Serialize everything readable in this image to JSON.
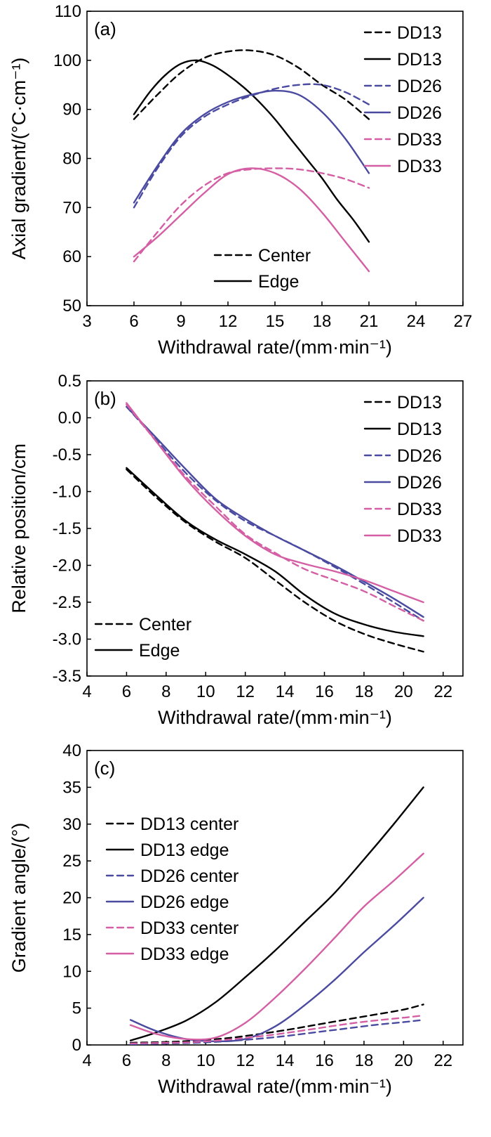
{
  "chart_data": [
    {
      "type": "line",
      "panel_label": "(a)",
      "xlabel": "Withdrawal rate/(mm·min⁻¹)",
      "ylabel": "Axial gradient/(°C·cm⁻¹)",
      "xlim": [
        3,
        27
      ],
      "ylim": [
        50,
        110
      ],
      "xticks": [
        3,
        6,
        9,
        12,
        15,
        18,
        21,
        24,
        27
      ],
      "yticks": [
        50,
        60,
        70,
        80,
        90,
        100,
        110
      ],
      "grid": false,
      "legend_placement": "top-right",
      "style_legend_placement": "bottom-center",
      "style_legend": [
        {
          "label": "Center",
          "dash": "dashed"
        },
        {
          "label": "Edge",
          "dash": "solid"
        }
      ],
      "series": [
        {
          "name": "DD13",
          "position": "center",
          "color": "#000000",
          "dash": "dashed",
          "x": [
            6,
            7.5,
            9,
            10.5,
            12,
            13.5,
            15,
            16.5,
            18,
            19.5,
            21
          ],
          "y": [
            88,
            93,
            97.5,
            100.5,
            101.8,
            102,
            101,
            98.5,
            95,
            92,
            88
          ]
        },
        {
          "name": "DD13",
          "position": "edge",
          "color": "#000000",
          "dash": "solid",
          "x": [
            6,
            7,
            8,
            9,
            10,
            11,
            12,
            13,
            14,
            15,
            16,
            17,
            18,
            19,
            20,
            21
          ],
          "y": [
            89,
            93.5,
            97,
            99.3,
            100,
            99,
            97,
            94.5,
            91.5,
            88,
            84,
            80,
            76,
            71.5,
            67.5,
            63
          ]
        },
        {
          "name": "DD26",
          "position": "center",
          "color": "#4a4aa0",
          "dash": "dashed",
          "x": [
            6,
            7.5,
            9,
            10.5,
            12,
            13.5,
            15,
            16.5,
            18,
            19.5,
            21
          ],
          "y": [
            70,
            78,
            84.5,
            88.5,
            91,
            92.8,
            94.2,
            95,
            95,
            93.5,
            91
          ]
        },
        {
          "name": "DD26",
          "position": "edge",
          "color": "#4a4aa0",
          "dash": "solid",
          "x": [
            6,
            7.5,
            9,
            10.5,
            12,
            13.5,
            15,
            16.5,
            18,
            19.5,
            21
          ],
          "y": [
            71,
            78.5,
            85,
            89,
            91.5,
            93,
            93.8,
            93,
            89.5,
            84,
            77
          ]
        },
        {
          "name": "DD33",
          "position": "center",
          "color": "#d45fa4",
          "dash": "dashed",
          "x": [
            6,
            7.5,
            9,
            10.5,
            12,
            13.5,
            15,
            16.5,
            18,
            19.5,
            21
          ],
          "y": [
            59,
            65,
            70.5,
            74.5,
            77,
            77.8,
            78,
            77.8,
            77,
            75.8,
            74
          ]
        },
        {
          "name": "DD33",
          "position": "edge",
          "color": "#d45fa4",
          "dash": "solid",
          "x": [
            6,
            7.5,
            9,
            10.5,
            12,
            13.5,
            15,
            16.5,
            18,
            19.5,
            21
          ],
          "y": [
            60,
            64,
            68.5,
            73,
            76.8,
            78,
            77,
            74,
            69,
            63,
            57
          ]
        }
      ]
    },
    {
      "type": "line",
      "panel_label": "(b)",
      "xlabel": "Withdrawal rate/(mm·min⁻¹)",
      "ylabel": "Relative position/cm",
      "xlim": [
        4,
        23
      ],
      "ylim": [
        -3.5,
        0.5
      ],
      "xticks": [
        4,
        6,
        8,
        10,
        12,
        14,
        16,
        18,
        20,
        22
      ],
      "yticks": [
        0.5,
        0.0,
        -0.5,
        -1.0,
        -1.5,
        -2.0,
        -2.5,
        -3.0,
        -3.5
      ],
      "ytick_labels": [
        "0.5",
        "0.0",
        "-0.5",
        "-1.0",
        "-1.5",
        "-2.0",
        "-2.5",
        "-3.0",
        "-3.5"
      ],
      "grid": false,
      "legend_placement": "top-right",
      "style_legend_placement": "bottom-left",
      "style_legend": [
        {
          "label": "Center",
          "dash": "dashed"
        },
        {
          "label": "Edge",
          "dash": "solid"
        }
      ],
      "series": [
        {
          "name": "DD13",
          "position": "center",
          "color": "#000000",
          "dash": "dashed",
          "x": [
            6,
            7.5,
            9,
            10.5,
            12,
            13.5,
            15,
            16.5,
            18,
            19.5,
            21
          ],
          "y": [
            -0.7,
            -1.08,
            -1.42,
            -1.68,
            -1.9,
            -2.2,
            -2.5,
            -2.75,
            -2.93,
            -3.06,
            -3.17
          ]
        },
        {
          "name": "DD13",
          "position": "edge",
          "color": "#000000",
          "dash": "solid",
          "x": [
            6,
            7.5,
            9,
            10.5,
            12,
            13.5,
            15,
            16.5,
            18,
            19.5,
            21
          ],
          "y": [
            -0.68,
            -1.05,
            -1.4,
            -1.65,
            -1.85,
            -2.08,
            -2.4,
            -2.65,
            -2.8,
            -2.9,
            -2.96
          ]
        },
        {
          "name": "DD26",
          "position": "center",
          "color": "#4a4aa0",
          "dash": "dashed",
          "x": [
            6,
            7.5,
            9,
            10.5,
            12,
            13.5,
            15,
            16.5,
            18,
            19.5,
            21
          ],
          "y": [
            0.15,
            -0.3,
            -0.75,
            -1.12,
            -1.4,
            -1.6,
            -1.8,
            -2.02,
            -2.25,
            -2.5,
            -2.75
          ]
        },
        {
          "name": "DD26",
          "position": "edge",
          "color": "#4a4aa0",
          "dash": "solid",
          "x": [
            6,
            7.5,
            9,
            10.5,
            12,
            13.5,
            15,
            16.5,
            18,
            19.5,
            21
          ],
          "y": [
            0.15,
            -0.27,
            -0.7,
            -1.1,
            -1.37,
            -1.6,
            -1.8,
            -2.0,
            -2.22,
            -2.45,
            -2.7
          ]
        },
        {
          "name": "DD33",
          "position": "center",
          "color": "#d45fa4",
          "dash": "dashed",
          "x": [
            6,
            7.5,
            9,
            10.5,
            12,
            13.5,
            15,
            16.5,
            18,
            19.5,
            21
          ],
          "y": [
            0.18,
            -0.32,
            -0.8,
            -1.2,
            -1.58,
            -1.83,
            -2.05,
            -2.2,
            -2.35,
            -2.55,
            -2.75
          ]
        },
        {
          "name": "DD33",
          "position": "edge",
          "color": "#d45fa4",
          "dash": "solid",
          "x": [
            6,
            7.5,
            9,
            10.5,
            12,
            13.5,
            15,
            16.5,
            18,
            19.5,
            21
          ],
          "y": [
            0.2,
            -0.32,
            -0.83,
            -1.25,
            -1.6,
            -1.85,
            -1.98,
            -2.08,
            -2.2,
            -2.35,
            -2.5
          ]
        }
      ]
    },
    {
      "type": "line",
      "panel_label": "(c)",
      "xlabel": "Withdrawal rate/(mm·min⁻¹)",
      "ylabel": "Gradient angle/(°)",
      "xlim": [
        4,
        23
      ],
      "ylim": [
        0,
        40
      ],
      "xticks": [
        4,
        6,
        8,
        10,
        12,
        14,
        16,
        18,
        20,
        22
      ],
      "yticks": [
        0,
        5,
        10,
        15,
        20,
        25,
        30,
        35,
        40
      ],
      "grid": false,
      "legend_placement": "top-left",
      "series": [
        {
          "name": "DD13 center",
          "color": "#000000",
          "dash": "dashed",
          "x": [
            6.2,
            8,
            9.5,
            11,
            12.5,
            14,
            15.5,
            17,
            18.5,
            20,
            21
          ],
          "y": [
            0.3,
            0.4,
            0.6,
            0.9,
            1.4,
            2.0,
            2.7,
            3.4,
            4.1,
            4.8,
            5.5
          ]
        },
        {
          "name": "DD13 edge",
          "color": "#000000",
          "dash": "solid",
          "x": [
            6.2,
            7.5,
            9,
            10.5,
            12,
            13.5,
            15,
            16.5,
            18,
            19.5,
            21
          ],
          "y": [
            0.6,
            1.7,
            3.3,
            5.8,
            9.2,
            12.8,
            16.7,
            20.6,
            25.2,
            30,
            35
          ]
        },
        {
          "name": "DD26 center",
          "color": "#4a4aa0",
          "dash": "dashed",
          "x": [
            6.2,
            8,
            9.5,
            11,
            12.5,
            14,
            15.5,
            17,
            18.5,
            20,
            21
          ],
          "y": [
            0.1,
            0.2,
            0.3,
            0.5,
            0.8,
            1.2,
            1.7,
            2.2,
            2.7,
            3.1,
            3.4
          ]
        },
        {
          "name": "DD26 edge",
          "color": "#4a4aa0",
          "dash": "solid",
          "x": [
            6.2,
            7.5,
            9,
            10.5,
            12,
            13.5,
            15,
            16.5,
            18,
            19.5,
            21
          ],
          "y": [
            3.4,
            1.9,
            0.8,
            0.5,
            0.8,
            2.5,
            5.4,
            8.8,
            12.6,
            16.2,
            20
          ]
        },
        {
          "name": "DD33 center",
          "color": "#d45fa4",
          "dash": "dashed",
          "x": [
            6.2,
            8,
            9.5,
            11,
            12.5,
            14,
            15.5,
            17,
            18.5,
            20,
            21
          ],
          "y": [
            0.2,
            0.3,
            0.4,
            0.7,
            1.1,
            1.6,
            2.2,
            2.8,
            3.3,
            3.7,
            4.0
          ]
        },
        {
          "name": "DD33 edge",
          "color": "#d45fa4",
          "dash": "solid",
          "x": [
            6.2,
            7.5,
            9,
            10.5,
            12,
            13.5,
            15,
            16.5,
            18,
            19.5,
            21
          ],
          "y": [
            2.7,
            1.5,
            0.8,
            1.0,
            3.0,
            6.4,
            10.3,
            14.5,
            18.8,
            22.3,
            26
          ]
        }
      ]
    }
  ]
}
